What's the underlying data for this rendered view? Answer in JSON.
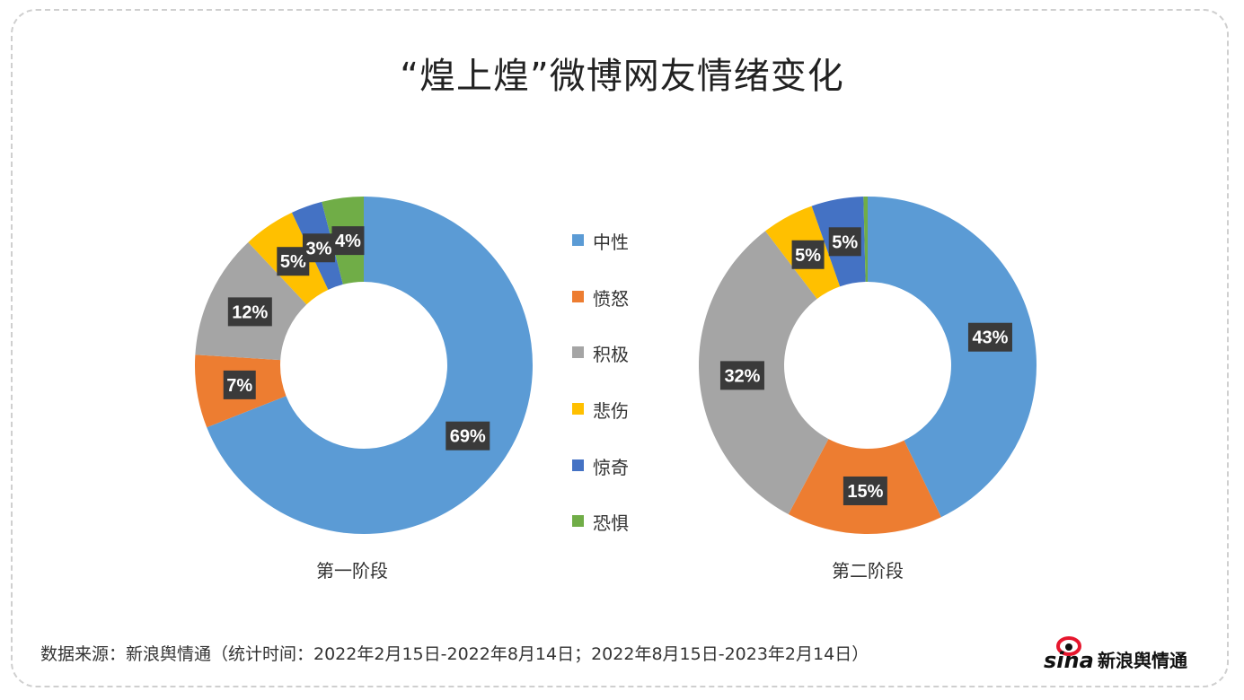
{
  "title": "“煌上煌”微博网友情绪变化",
  "colors": {
    "中性": "#5b9bd5",
    "愤怒": "#ed7d31",
    "积极": "#a5a5a5",
    "悲伤": "#ffc000",
    "惊奇": "#4472c4",
    "恐惧": "#70ad47"
  },
  "chart_data": [
    {
      "type": "pie",
      "style": "donut",
      "title": "第一阶段",
      "categories": [
        "中性",
        "愤怒",
        "积极",
        "悲伤",
        "惊奇",
        "恐惧"
      ],
      "values": [
        69,
        7,
        12,
        5,
        3,
        4
      ],
      "data_labels": [
        "69%",
        "7%",
        "12%",
        "5%",
        "3%",
        "4%"
      ]
    },
    {
      "type": "pie",
      "style": "donut",
      "title": "第二阶段",
      "categories": [
        "中性",
        "愤怒",
        "积极",
        "悲伤",
        "惊奇",
        "恐惧"
      ],
      "values": [
        43,
        15,
        32,
        5,
        5,
        0.4
      ],
      "data_labels": [
        "43%",
        "15%",
        "32%",
        "5%",
        "5%",
        ""
      ]
    }
  ],
  "legend": [
    "中性",
    "愤怒",
    "积极",
    "悲伤",
    "惊奇",
    "恐惧"
  ],
  "source": "数据来源：新浪舆情通（统计时间：2022年2月15日-2022年8月14日；2022年8月15日-2023年2月14日）",
  "logo_text": "sina新浪舆情通"
}
